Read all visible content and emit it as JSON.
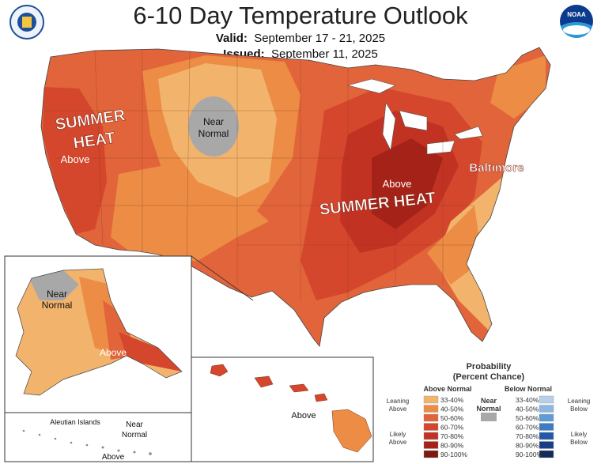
{
  "header": {
    "title": "6-10 Day Temperature Outlook",
    "valid_label": "Valid:",
    "valid_value": "September 17 - 21, 2025",
    "issued_label": "Issued:",
    "issued_value": "September 11, 2025",
    "noaa_text": "NOAA"
  },
  "map_labels": {
    "summer_heat_west_1": "SUMMER",
    "summer_heat_west_2": "HEAT",
    "above_west": "Above",
    "near_normal_1": "Near",
    "near_normal_2": "Normal",
    "above_east": "Above",
    "summer_heat_east": "SUMMER HEAT",
    "baltimore": "Baltimore",
    "alaska_near_1": "Near",
    "alaska_near_2": "Normal",
    "alaska_above": "Above",
    "aleutian": "Aleutian Islands",
    "aleutian_near_1": "Near",
    "aleutian_near_2": "Normal",
    "aleutian_above": "Above",
    "hawaii_above": "Above"
  },
  "legend": {
    "title_1": "Probability",
    "title_2": "(Percent Chance)",
    "above_header": "Above Normal",
    "below_header": "Below Normal",
    "near_1": "Near",
    "near_2": "Normal",
    "leaning_above_1": "Leaning",
    "leaning_above_2": "Above",
    "likely_above_1": "Likely",
    "likely_above_2": "Above",
    "leaning_below_1": "Leaning",
    "leaning_below_2": "Below",
    "likely_below_1": "Likely",
    "likely_below_2": "Below",
    "ranges": [
      "33-40%",
      "40-50%",
      "50-60%",
      "60-70%",
      "70-80%",
      "80-90%",
      "90-100%"
    ],
    "above_colors": [
      "#f2b46c",
      "#ec8c45",
      "#e2643a",
      "#d4472d",
      "#c23222",
      "#a52218",
      "#7a1a10"
    ],
    "below_colors": [
      "#b7cfe8",
      "#8fb6e0",
      "#5f9bd6",
      "#3b7cc4",
      "#2358a8",
      "#1b3d86",
      "#152a5c"
    ],
    "near_color": "#a8a8a8"
  }
}
